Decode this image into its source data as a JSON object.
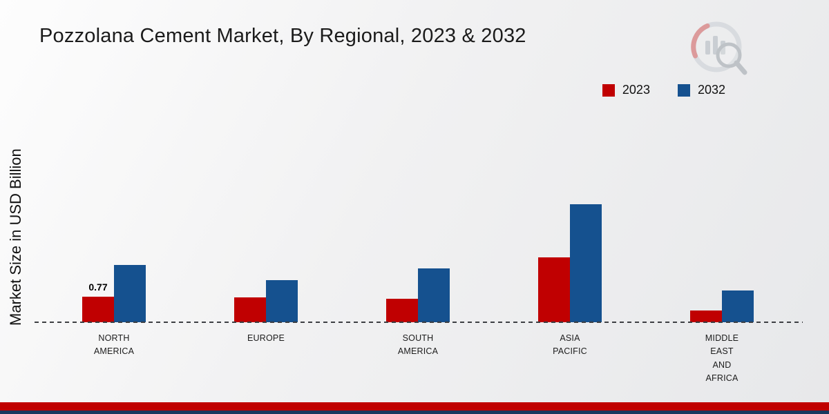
{
  "title": "Pozzolana Cement Market, By Regional, 2023 & 2032",
  "ylabel": "Market Size in USD Billion",
  "legend": [
    {
      "label": "2023",
      "color": "#c00001"
    },
    {
      "label": "2032",
      "color": "#15518f"
    }
  ],
  "branding": {
    "logo_icon": "bar-chart-magnifier-logo"
  },
  "colors": {
    "series_2023": "#c00001",
    "series_2032": "#15518f",
    "footer_red": "#c00000",
    "footer_navy": "#17395f",
    "axis_dash": "#3c3e42"
  },
  "chart_data": {
    "type": "bar",
    "categories": [
      "North America",
      "Europe",
      "South America",
      "Asia Pacific",
      "Middle East and Africa"
    ],
    "category_labels": [
      [
        "NORTH",
        "AMERICA"
      ],
      [
        "EUROPE"
      ],
      [
        "SOUTH",
        "AMERICA"
      ],
      [
        "ASIA",
        "PACIFIC"
      ],
      [
        "MIDDLE",
        "EAST",
        "AND",
        "AFRICA"
      ]
    ],
    "series": [
      {
        "name": "2023",
        "color": "#c00001",
        "values": [
          0.77,
          0.75,
          0.7,
          1.95,
          0.35
        ]
      },
      {
        "name": "2032",
        "color": "#15518f",
        "values": [
          1.73,
          1.27,
          1.62,
          3.56,
          0.96
        ]
      }
    ],
    "annotations": [
      {
        "series": "2023",
        "category": "North America",
        "text": "0.77"
      }
    ],
    "title": "Pozzolana Cement Market, By Regional, 2023 & 2032",
    "xlabel": "",
    "ylabel": "Market Size in USD Billion",
    "ylim": [
      0,
      4.5
    ],
    "grid": false,
    "legend_position": "top-right",
    "baseline_style": "dashed"
  }
}
